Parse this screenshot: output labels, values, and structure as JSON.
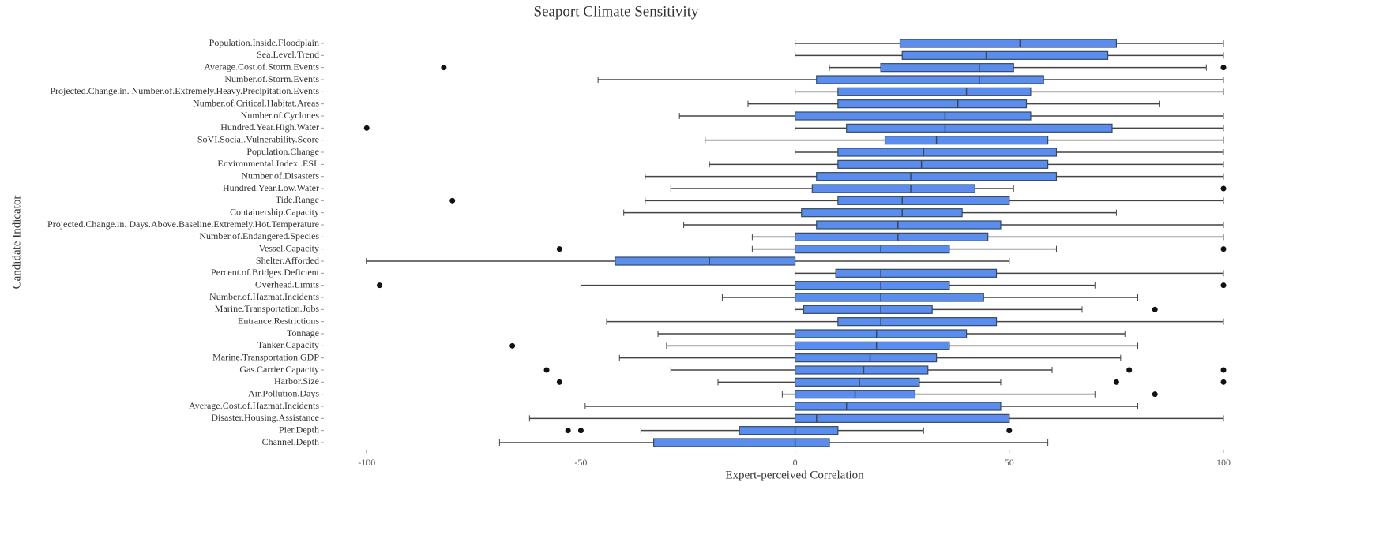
{
  "chart_data": {
    "type": "boxplot",
    "title": "Seaport Climate Sensitivity",
    "x_label": "Expert-perceived Correlation",
    "y_label": "Candidate Indicator",
    "color": "#5b8def",
    "xlim": [
      -110,
      100
    ],
    "xticks": [
      -100,
      -50,
      0,
      50,
      100
    ],
    "categories": [
      "Population.Inside.Floodplain",
      "Sea.Level.Trend",
      "Average.Cost.of.Storm.Events",
      "Number.of.Storm.Events",
      "Projected.Change.in. Number.of.Extremely.Heavy.Precipitation.Events",
      "Number.of.Critical.Habitat.Areas",
      "Number.of.Cyclones",
      "Hundred.Year.High.Water",
      "SoVI.Social.Vulnerability.Score",
      "Population.Change",
      "Environmental.Index..ESI.",
      "Number.of.Disasters",
      "Hundred.Year.Low.Water",
      "Tide.Range",
      "Containership.Capacity",
      "Projected.Change.in. Days.Above.Baseline.Extremely.Hot.Temperature",
      "Number.of.Endangered.Species",
      "Vessel.Capacity",
      "Shelter.Afforded",
      "Percent.of.Bridges.Deficient",
      "Overhead.Limits",
      "Number.of.Hazmat.Incidents",
      "Marine.Transportation.Jobs",
      "Entrance.Restrictions",
      "Tonnage",
      "Tanker.Capacity",
      "Marine.Transportation.GDP",
      "Gas.Carrier.Capacity",
      "Harbor.Size",
      "Air.Pollution.Days",
      "Average.Cost.of.Hazmat.Incidents",
      "Disaster.Housing.Assistance",
      "Pier.Depth",
      "Channel.Depth"
    ],
    "low": [
      0,
      0,
      8,
      -46,
      0,
      -11,
      -27,
      0,
      -21,
      0,
      -20,
      -35,
      -29,
      -35,
      -40,
      -26,
      -10,
      -10,
      -100,
      0,
      -50,
      -17,
      0,
      -44,
      -32,
      -30,
      -41,
      -29,
      -18,
      -3,
      -49,
      -62,
      -36,
      -69
    ],
    "q1": [
      24.5,
      25,
      20,
      5,
      10,
      10,
      0,
      12,
      21,
      10,
      10,
      5,
      4,
      10,
      1.5,
      5,
      0,
      0,
      -42,
      9.5,
      0,
      0,
      2,
      10,
      0,
      0,
      0,
      0,
      0,
      0,
      0,
      0,
      -13,
      -33
    ],
    "median": [
      52.5,
      44.6,
      43,
      43,
      40,
      38,
      35,
      35,
      33,
      30,
      29.5,
      27,
      27,
      25,
      25,
      24,
      24,
      20,
      -20,
      20,
      20,
      20,
      20,
      20,
      19,
      19,
      17.5,
      16,
      15,
      14,
      12,
      5,
      0,
      0
    ],
    "q3": [
      75,
      73,
      51,
      58,
      55,
      54,
      55,
      74,
      59,
      61,
      59,
      61,
      42,
      50,
      39,
      48,
      45,
      36,
      0,
      47,
      36,
      44,
      32,
      47,
      40,
      36,
      33,
      31,
      29,
      28,
      48,
      50,
      10,
      8
    ],
    "high": [
      100,
      100,
      96,
      100,
      100,
      85,
      100,
      100,
      100,
      100,
      100,
      100,
      51,
      100,
      75,
      100,
      100,
      61,
      50,
      100,
      70,
      80,
      67,
      100,
      77,
      80,
      76,
      60,
      48,
      70,
      80,
      100,
      30,
      59
    ],
    "outliers": [
      [],
      [],
      [
        -82,
        100
      ],
      [],
      [],
      [],
      [],
      [
        -100
      ],
      [],
      [],
      [],
      [],
      [
        100
      ],
      [
        -80
      ],
      [],
      [],
      [],
      [
        -55,
        100
      ],
      [],
      [],
      [
        -97,
        100
      ],
      [],
      [
        84
      ],
      [],
      [],
      [
        -66
      ],
      [],
      [
        -58,
        78,
        100
      ],
      [
        -55,
        75,
        100
      ],
      [
        84
      ],
      [],
      [],
      [
        -53,
        -50,
        50
      ],
      []
    ]
  }
}
